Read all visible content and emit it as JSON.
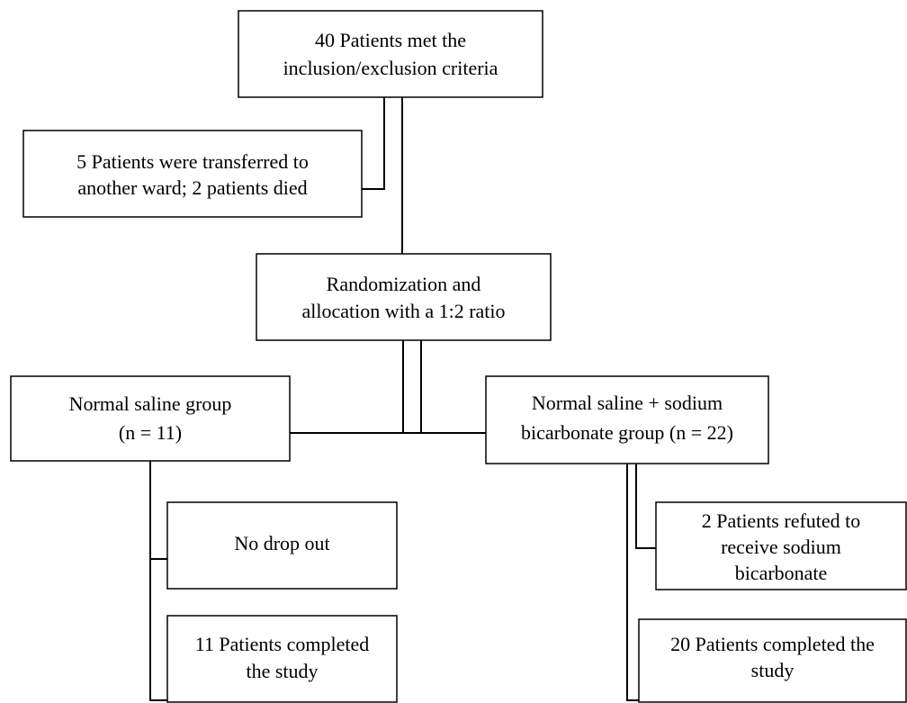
{
  "nodes": [
    {
      "lines": [
        "40 Patients met the",
        "inclusion/exclusion criteria"
      ]
    },
    {
      "lines": [
        "5 Patients were transferred to",
        "another ward; 2 patients died"
      ]
    },
    {
      "lines": [
        "Randomization and",
        "allocation with a 1:2 ratio"
      ]
    },
    {
      "lines": [
        "Normal saline group",
        "(n = 11)"
      ]
    },
    {
      "lines": [
        "Normal saline + sodium",
        "bicarbonate group (n = 22)"
      ]
    },
    {
      "lines": [
        "No drop out"
      ]
    },
    {
      "lines": [
        "11 Patients completed",
        "the study"
      ]
    },
    {
      "lines": [
        "2 Patients refuted to",
        "receive sodium",
        "bicarbonate"
      ]
    },
    {
      "lines": [
        "20 Patients completed the",
        "study"
      ]
    }
  ]
}
